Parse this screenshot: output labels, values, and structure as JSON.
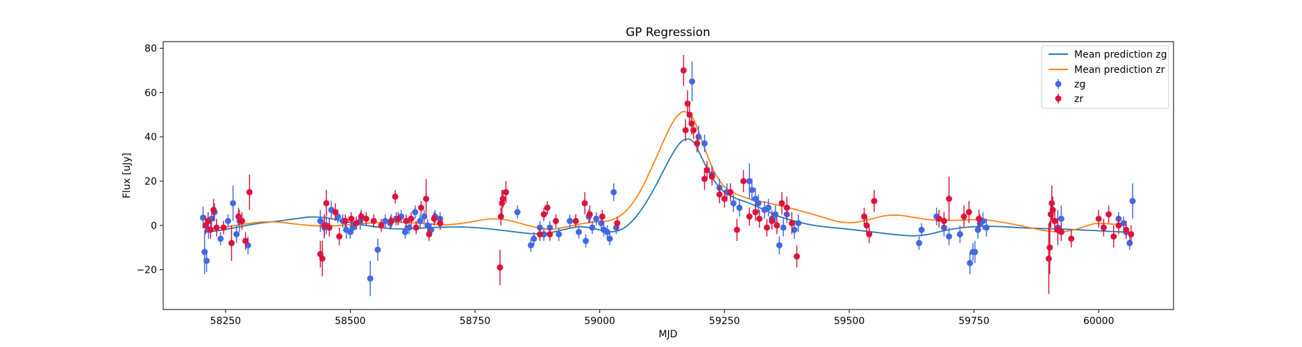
{
  "chart_data": {
    "type": "scatter",
    "title": "GP Regression",
    "xlabel": "MJD",
    "ylabel": "Flux [uJy]",
    "xlim": [
      58125,
      60150
    ],
    "ylim": [
      -38,
      83
    ],
    "xticks": [
      58250,
      58500,
      58750,
      59000,
      59250,
      59500,
      59750,
      60000
    ],
    "yticks": [
      -20,
      0,
      20,
      40,
      60,
      80
    ],
    "grid": false,
    "legend_position": "top-right",
    "lines": [
      {
        "name": "Mean prediction zg",
        "color": "#1f77b4",
        "x": [
          58210,
          58240,
          58270,
          58300,
          58330,
          58360,
          58390,
          58420,
          58450,
          58480,
          58510,
          58540,
          58570,
          58600,
          58630,
          58660,
          58690,
          58720,
          58750,
          58780,
          58810,
          58840,
          58870,
          58900,
          58930,
          58960,
          58990,
          59020,
          59050,
          59080,
          59110,
          59140,
          59160,
          59175,
          59190,
          59210,
          59230,
          59250,
          59270,
          59300,
          59330,
          59360,
          59390,
          59420,
          59450,
          59480,
          59510,
          59540,
          59570,
          59600,
          59630,
          59660,
          59690,
          59720,
          59750,
          59780,
          59810,
          59840,
          59870,
          59900,
          59930,
          59960,
          59990,
          60020,
          60050
        ],
        "y": [
          -3,
          -2.2,
          -1,
          0.3,
          1.3,
          2.1,
          3,
          3.8,
          3.5,
          2.2,
          0.8,
          -0.3,
          -1.2,
          -1.6,
          -1.4,
          -1,
          -0.8,
          -0.7,
          -1,
          -1.6,
          -2.4,
          -3.2,
          -3.8,
          -3.3,
          -1.8,
          -0.6,
          -1.5,
          -3,
          -1,
          6,
          17,
          30,
          37,
          39,
          37,
          28,
          20,
          15,
          12.5,
          10,
          7,
          4,
          2,
          0.4,
          -0.6,
          -1.3,
          -2,
          -2.8,
          -3.6,
          -4.3,
          -4.7,
          -4,
          -2.4,
          -1.2,
          -0.6,
          -0.4,
          -0.6,
          -1,
          -1.3,
          -1.5,
          -1.7,
          -2,
          -2.3,
          -2.7,
          -3
        ]
      },
      {
        "name": "Mean prediction zr",
        "color": "#ff7f0e",
        "x": [
          58210,
          58240,
          58270,
          58300,
          58330,
          58360,
          58390,
          58420,
          58450,
          58480,
          58510,
          58540,
          58570,
          58600,
          58630,
          58660,
          58690,
          58720,
          58750,
          58780,
          58810,
          58840,
          58870,
          58900,
          58930,
          58960,
          58990,
          59020,
          59050,
          59080,
          59110,
          59140,
          59160,
          59175,
          59190,
          59210,
          59230,
          59250,
          59270,
          59300,
          59330,
          59360,
          59390,
          59420,
          59450,
          59480,
          59510,
          59540,
          59570,
          59600,
          59630,
          59660,
          59690,
          59720,
          59750,
          59780,
          59810,
          59840,
          59870,
          59900,
          59930,
          59960,
          59990,
          60020,
          60050
        ],
        "y": [
          -1.5,
          -1,
          0,
          1,
          1.6,
          1.4,
          0.6,
          0,
          -0.3,
          0,
          0.6,
          1.1,
          1.4,
          1.4,
          1.1,
          0.6,
          0.3,
          0.8,
          1.9,
          2.9,
          2.6,
          1,
          -0.8,
          -1.8,
          -0.8,
          0.6,
          1.6,
          2.2,
          6,
          15,
          29,
          44,
          50.5,
          51,
          47,
          35,
          24,
          17.5,
          14.5,
          12,
          10.5,
          9,
          7.3,
          5.5,
          3.5,
          1.6,
          1.3,
          2.7,
          4.3,
          4.6,
          3.6,
          2.6,
          2.3,
          2.3,
          2.6,
          2.3,
          1.3,
          0,
          -1.4,
          -2.6,
          -2.8,
          -1.4,
          0.7,
          0.7,
          0
        ]
      }
    ],
    "series": [
      {
        "name": "zg",
        "color": "#4169e1",
        "x": [
          58205,
          58208,
          58212,
          58216,
          58222,
          58228,
          58240,
          58255,
          58265,
          58272,
          58278,
          58295,
          58440,
          58448,
          58452,
          58462,
          58475,
          58485,
          58492,
          58500,
          58505,
          58520,
          58540,
          58555,
          58570,
          58580,
          58592,
          58602,
          58610,
          58618,
          58630,
          58640,
          58648,
          58655,
          58662,
          58670,
          58680,
          58835,
          58862,
          58868,
          58880,
          58888,
          58900,
          58918,
          58940,
          58958,
          58972,
          58978,
          58985,
          58993,
          59003,
          59008,
          59015,
          59020,
          59028,
          59033,
          59185,
          59198,
          59210,
          59225,
          59240,
          59255,
          59268,
          59280,
          59300,
          59305,
          59312,
          59318,
          59330,
          59338,
          59345,
          59352,
          59360,
          59368,
          59375,
          59390,
          59398,
          59640,
          59645,
          59675,
          59690,
          59700,
          59722,
          59742,
          59748,
          59752,
          59758,
          59762,
          59768,
          59775,
          59918,
          59925,
          60040,
          60050,
          60055,
          60062,
          60068
        ],
        "y": [
          3.5,
          -12,
          -16,
          -2,
          3,
          6,
          -6,
          2,
          10,
          -4,
          2,
          -9,
          2,
          -1,
          0,
          7,
          4,
          2,
          -2,
          -3,
          -1,
          2,
          -24,
          -11,
          2,
          1,
          3,
          4,
          -3,
          -1,
          6,
          2,
          4,
          0,
          -2,
          4,
          3,
          6,
          -9,
          -6,
          -1,
          -4,
          -1,
          -4,
          2,
          -3,
          -7,
          4,
          -1,
          3,
          1,
          -2,
          -3,
          -6,
          15,
          -1,
          65,
          40,
          37,
          23,
          17,
          15,
          10,
          8,
          20,
          16,
          12,
          10,
          7,
          8,
          3,
          5,
          -9,
          -1,
          5,
          -2,
          1,
          -8,
          -2,
          4,
          -1,
          -5,
          -4,
          -17,
          -12,
          -12,
          -2,
          1,
          2,
          -1,
          -1,
          3,
          3,
          1,
          -3,
          -8,
          11
        ],
        "yerr": [
          5,
          10,
          5,
          4,
          4,
          4,
          3,
          3,
          8,
          4,
          5,
          4,
          5,
          5,
          4,
          4,
          3,
          3,
          4,
          3,
          3,
          4,
          8,
          5,
          3,
          3,
          3,
          3,
          3,
          3,
          3,
          3,
          3,
          3,
          3,
          3,
          3,
          3,
          3,
          3,
          3,
          3,
          3,
          3,
          3,
          3,
          3,
          3,
          3,
          3,
          3,
          3,
          3,
          3,
          4,
          3,
          9,
          5,
          4,
          4,
          4,
          4,
          4,
          4,
          8,
          5,
          5,
          4,
          4,
          4,
          4,
          4,
          4,
          4,
          4,
          4,
          4,
          3,
          3,
          4,
          4,
          4,
          4,
          5,
          4,
          5,
          4,
          4,
          4,
          4,
          8,
          6,
          3,
          3,
          3,
          3,
          8
        ]
      },
      {
        "name": "zr",
        "color": "#dc143c",
        "x": [
          58210,
          58215,
          58220,
          58226,
          58232,
          58246,
          58262,
          58276,
          58283,
          58290,
          58298,
          58440,
          58444,
          58448,
          58452,
          58458,
          58470,
          58478,
          58490,
          58502,
          58512,
          58522,
          58532,
          58547,
          58562,
          58582,
          58590,
          58596,
          58612,
          58622,
          58632,
          58642,
          58652,
          58658,
          58668,
          58680,
          58800,
          58802,
          58804,
          58806,
          58812,
          58880,
          58888,
          58895,
          58900,
          58912,
          58952,
          58970,
          58980,
          59005,
          59035,
          59168,
          59172,
          59176,
          59180,
          59184,
          59188,
          59195,
          59210,
          59215,
          59225,
          59240,
          59250,
          59262,
          59275,
          59288,
          59300,
          59312,
          59320,
          59335,
          59345,
          59355,
          59365,
          59375,
          59385,
          59395,
          59530,
          59535,
          59540,
          59550,
          59680,
          59690,
          59700,
          59730,
          59740,
          59760,
          59900,
          59902,
          59904,
          59906,
          59908,
          59912,
          59918,
          59925,
          59945,
          60000,
          60010,
          60020,
          60030,
          60040,
          60055,
          60065
        ],
        "y": [
          0,
          2,
          -2,
          7,
          -1,
          -1,
          -8,
          4,
          2,
          -7,
          15,
          -13,
          -15,
          0,
          10,
          -1,
          6,
          -5,
          2,
          3,
          1,
          4,
          3,
          2,
          0,
          2,
          13,
          3,
          2,
          3,
          -1,
          8,
          12,
          -4,
          3,
          1,
          -19,
          4,
          10,
          12,
          15,
          -4,
          5,
          8,
          -4,
          2,
          2,
          10,
          5,
          4,
          1,
          70,
          43,
          55,
          50,
          46,
          43,
          37,
          21,
          25,
          22,
          14,
          12,
          15,
          -2,
          20,
          4,
          6,
          3,
          -1,
          2,
          0,
          10,
          8,
          1,
          -14,
          4,
          0,
          -4,
          11,
          3,
          2,
          12,
          4,
          6,
          3,
          -15,
          -10,
          5,
          10,
          7,
          2,
          -2,
          -3,
          -6,
          3,
          -1,
          5,
          -5,
          0,
          -2,
          -4
        ],
        "yerr": [
          4,
          4,
          4,
          5,
          4,
          3,
          8,
          4,
          4,
          4,
          8,
          6,
          8,
          5,
          6,
          4,
          4,
          4,
          3,
          3,
          3,
          3,
          3,
          3,
          3,
          3,
          3,
          3,
          3,
          3,
          3,
          3,
          9,
          3,
          3,
          3,
          8,
          4,
          6,
          4,
          5,
          3,
          3,
          3,
          3,
          3,
          3,
          5,
          4,
          3,
          3,
          7,
          5,
          6,
          4,
          5,
          4,
          4,
          5,
          4,
          4,
          4,
          4,
          4,
          5,
          5,
          4,
          4,
          4,
          4,
          4,
          4,
          5,
          5,
          5,
          5,
          4,
          4,
          4,
          5,
          4,
          4,
          10,
          5,
          5,
          4,
          16,
          12,
          6,
          8,
          6,
          5,
          5,
          4,
          4,
          4,
          4,
          4,
          5,
          4,
          4,
          4
        ]
      }
    ]
  }
}
